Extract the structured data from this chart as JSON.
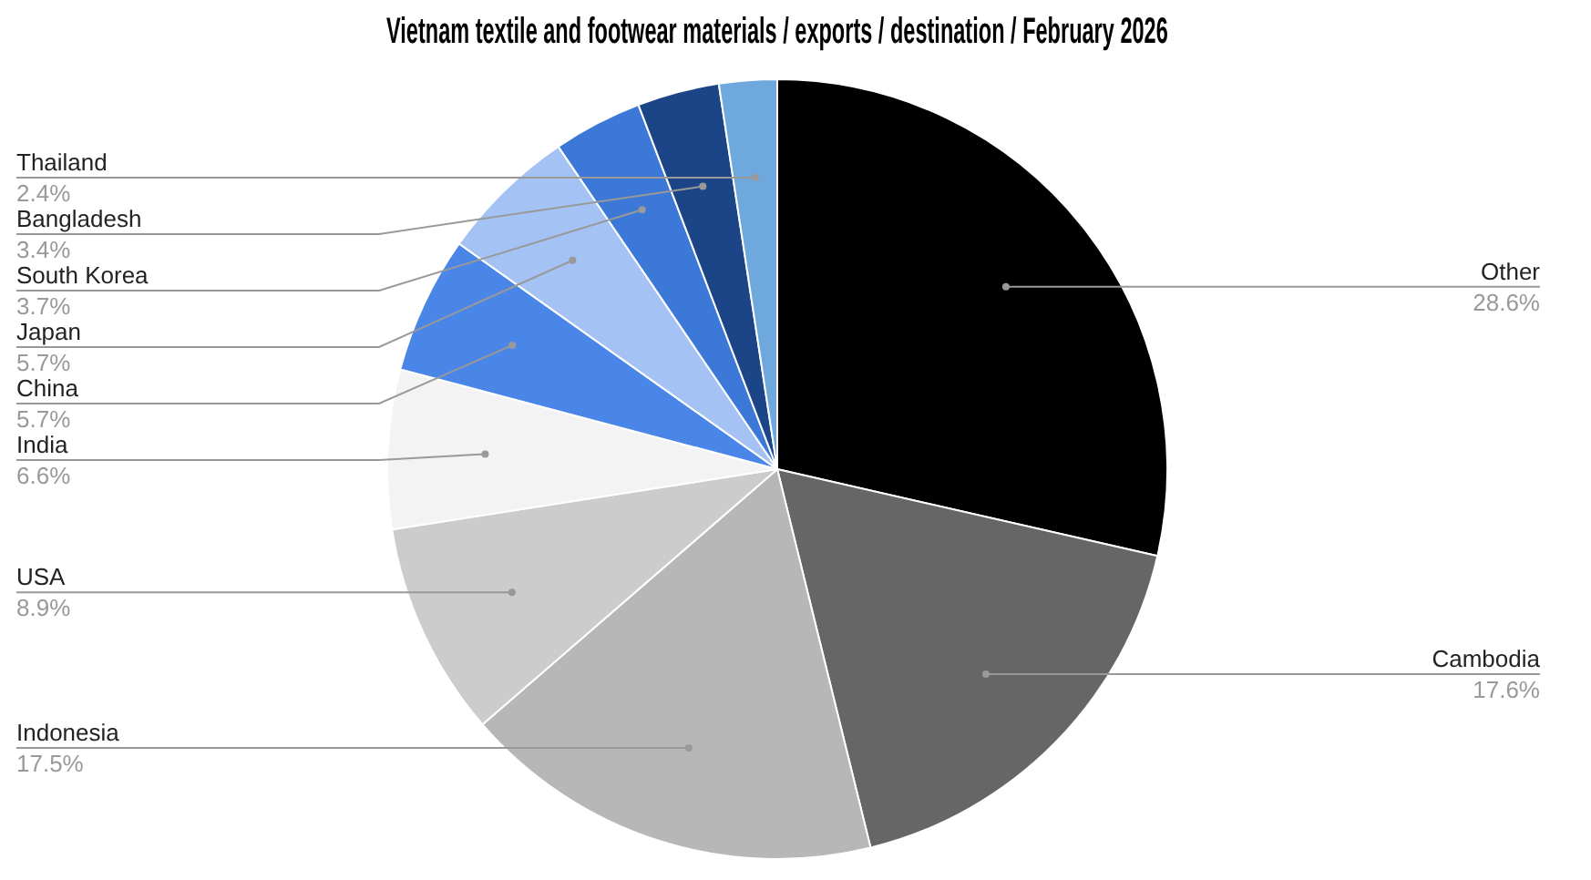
{
  "chart_data": {
    "type": "pie",
    "title": "Vietnam textile and footwear materials / exports / destination / February 2026",
    "categories": [
      "Other",
      "Cambodia",
      "Indonesia",
      "USA",
      "India",
      "China",
      "Japan",
      "South Korea",
      "Bangladesh",
      "Thailand"
    ],
    "values": [
      28.6,
      17.6,
      17.5,
      8.9,
      6.6,
      5.7,
      5.7,
      3.7,
      3.4,
      2.4
    ],
    "value_labels": [
      "28.6%",
      "17.6%",
      "17.5%",
      "8.9%",
      "6.6%",
      "5.7%",
      "5.7%",
      "3.7%",
      "3.4%",
      "2.4%"
    ],
    "colors": [
      "#000000",
      "#666666",
      "#b7b7b7",
      "#cccccc",
      "#f3f3f3",
      "#4a86e8",
      "#a4c2f4",
      "#3c78d8",
      "#1c4587",
      "#6fa8dc"
    ],
    "legend": false
  }
}
